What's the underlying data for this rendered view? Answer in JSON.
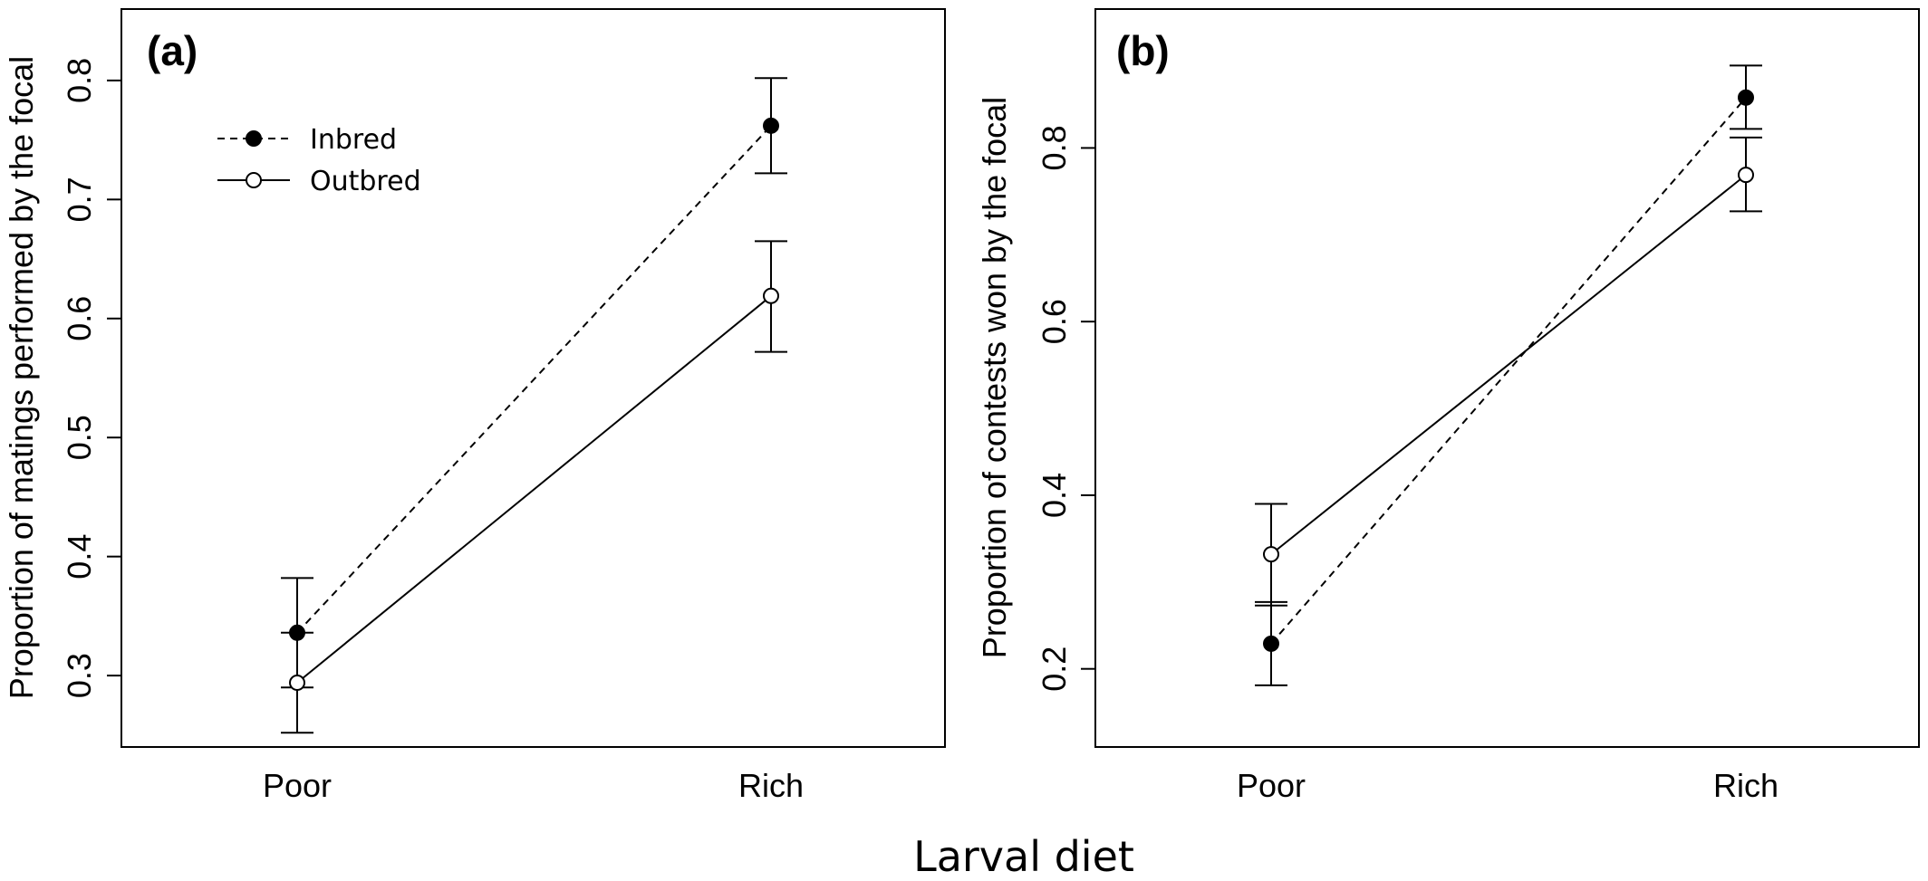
{
  "figure": {
    "xlabel": "Larval diet"
  },
  "legend": {
    "entries": [
      {
        "label": "Inbred",
        "marker": "filled-circle",
        "line": "dashed"
      },
      {
        "label": "Outbred",
        "marker": "open-circle",
        "line": "solid"
      }
    ],
    "placement": "top-left of panel (a)"
  },
  "chart_data": [
    {
      "type": "line",
      "panel_label": "(a)",
      "categories": [
        "Poor",
        "Rich"
      ],
      "ylabel": "Proportion of matings performed by the focal",
      "ylim": [
        0.24,
        0.86
      ],
      "yticks": [
        0.3,
        0.4,
        0.5,
        0.6,
        0.7,
        0.8
      ],
      "ytick_labels": [
        "0.3",
        "0.4",
        "0.5",
        "0.6",
        "0.7",
        "0.8"
      ],
      "grid": false,
      "series": [
        {
          "name": "Inbred",
          "values": [
            0.336,
            0.762
          ],
          "err_low": [
            0.29,
            0.722
          ],
          "err_high": [
            0.382,
            0.802
          ]
        },
        {
          "name": "Outbred",
          "values": [
            0.294,
            0.619
          ],
          "err_low": [
            0.252,
            0.572
          ],
          "err_high": [
            0.336,
            0.665
          ]
        }
      ]
    },
    {
      "type": "line",
      "panel_label": "(b)",
      "categories": [
        "Poor",
        "Rich"
      ],
      "ylabel": "Proportion of contests won by the focal",
      "ylim": [
        0.11,
        0.96
      ],
      "yticks": [
        0.2,
        0.4,
        0.6,
        0.8
      ],
      "ytick_labels": [
        "0.2",
        "0.4",
        "0.6",
        "0.8"
      ],
      "grid": false,
      "series": [
        {
          "name": "Inbred",
          "values": [
            0.229,
            0.858
          ],
          "err_low": [
            0.181,
            0.822
          ],
          "err_high": [
            0.277,
            0.895
          ]
        },
        {
          "name": "Outbred",
          "values": [
            0.332,
            0.769
          ],
          "err_low": [
            0.273,
            0.727
          ],
          "err_high": [
            0.39,
            0.812
          ]
        }
      ]
    }
  ]
}
